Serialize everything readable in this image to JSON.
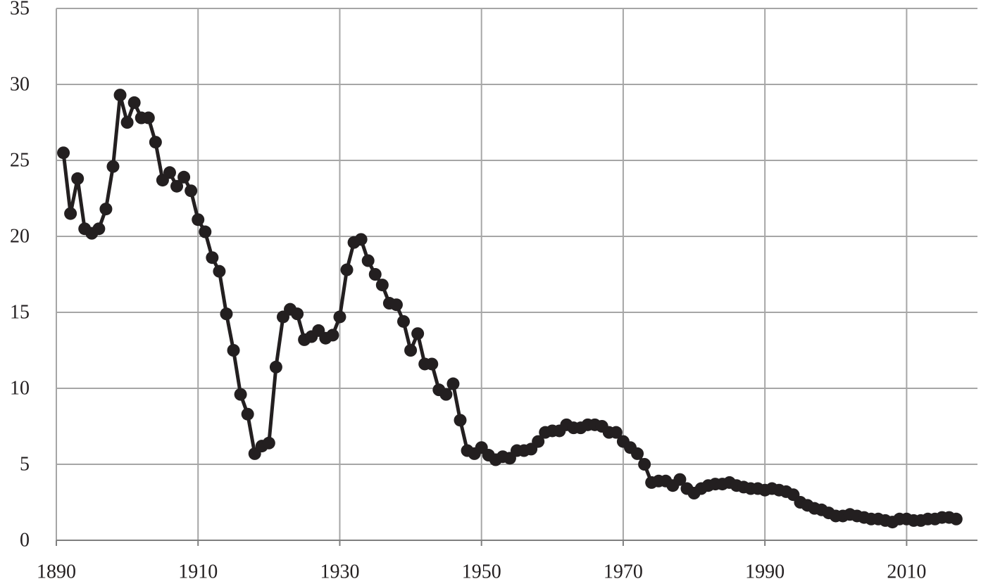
{
  "chart_data": {
    "type": "line",
    "x": [
      1891,
      1892,
      1893,
      1894,
      1895,
      1896,
      1897,
      1898,
      1899,
      1900,
      1901,
      1902,
      1903,
      1904,
      1905,
      1906,
      1907,
      1908,
      1909,
      1910,
      1911,
      1912,
      1913,
      1914,
      1915,
      1916,
      1917,
      1918,
      1919,
      1920,
      1921,
      1922,
      1923,
      1924,
      1925,
      1926,
      1927,
      1928,
      1929,
      1930,
      1931,
      1932,
      1933,
      1934,
      1935,
      1936,
      1937,
      1938,
      1939,
      1940,
      1941,
      1942,
      1943,
      1944,
      1945,
      1946,
      1947,
      1948,
      1949,
      1950,
      1951,
      1952,
      1953,
      1954,
      1955,
      1956,
      1957,
      1958,
      1959,
      1960,
      1961,
      1962,
      1963,
      1964,
      1965,
      1966,
      1967,
      1968,
      1969,
      1970,
      1971,
      1972,
      1973,
      1974,
      1975,
      1976,
      1977,
      1978,
      1979,
      1980,
      1981,
      1982,
      1983,
      1984,
      1985,
      1986,
      1987,
      1988,
      1989,
      1990,
      1991,
      1992,
      1993,
      1994,
      1995,
      1996,
      1997,
      1998,
      1999,
      2000,
      2001,
      2002,
      2003,
      2004,
      2005,
      2006,
      2007,
      2008,
      2009,
      2010,
      2011,
      2012,
      2013,
      2014,
      2015,
      2016,
      2017
    ],
    "values": [
      25.5,
      21.5,
      23.8,
      20.5,
      20.2,
      20.5,
      21.8,
      24.6,
      29.3,
      27.5,
      28.8,
      27.8,
      27.8,
      26.2,
      23.7,
      24.2,
      23.3,
      23.9,
      23.0,
      21.1,
      20.3,
      18.6,
      17.7,
      14.9,
      12.5,
      9.6,
      8.3,
      5.7,
      6.2,
      6.4,
      11.4,
      14.7,
      15.2,
      14.9,
      13.2,
      13.4,
      13.8,
      13.3,
      13.5,
      14.7,
      17.8,
      19.6,
      19.8,
      18.4,
      17.5,
      16.8,
      15.6,
      15.5,
      14.4,
      12.5,
      13.6,
      11.6,
      11.6,
      9.9,
      9.6,
      10.3,
      7.9,
      5.9,
      5.7,
      6.1,
      5.6,
      5.3,
      5.5,
      5.4,
      5.9,
      5.9,
      6.0,
      6.5,
      7.1,
      7.2,
      7.2,
      7.6,
      7.4,
      7.4,
      7.6,
      7.6,
      7.5,
      7.1,
      7.1,
      6.5,
      6.1,
      5.7,
      5.0,
      3.8,
      3.9,
      3.9,
      3.6,
      4.0,
      3.4,
      3.1,
      3.4,
      3.6,
      3.7,
      3.7,
      3.8,
      3.6,
      3.5,
      3.4,
      3.4,
      3.3,
      3.4,
      3.3,
      3.2,
      3.0,
      2.5,
      2.3,
      2.1,
      2.0,
      1.8,
      1.6,
      1.6,
      1.7,
      1.6,
      1.5,
      1.4,
      1.4,
      1.3,
      1.2,
      1.4,
      1.4,
      1.3,
      1.3,
      1.4,
      1.4,
      1.5,
      1.5,
      1.4
    ],
    "color": "#231f20",
    "xlim": [
      1890,
      2020
    ],
    "xticks": [
      1890,
      1910,
      1930,
      1950,
      1970,
      1990,
      2010
    ],
    "ylim": [
      0,
      35
    ],
    "yticks": [
      0,
      5,
      10,
      15,
      20,
      25,
      30,
      35
    ],
    "grid": true
  }
}
